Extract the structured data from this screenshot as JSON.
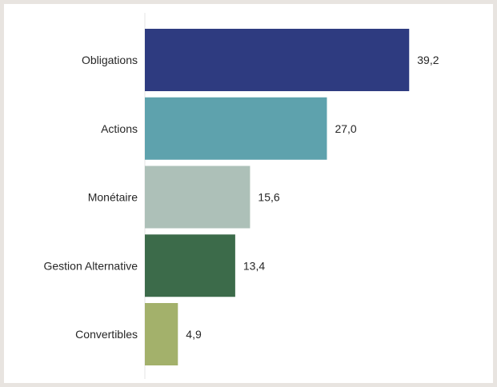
{
  "chart_data": {
    "type": "bar",
    "orientation": "horizontal",
    "categories": [
      "Obligations",
      "Actions",
      "Monétaire",
      "Gestion Alternative",
      "Convertibles"
    ],
    "values": [
      39.2,
      27.0,
      15.6,
      13.4,
      4.9
    ],
    "value_labels": [
      "39,2",
      "27,0",
      "15,6",
      "13,4",
      "4,9"
    ],
    "colors": [
      "#2e3b80",
      "#5ea2ad",
      "#adc0b8",
      "#3c6b4a",
      "#a3b16b"
    ],
    "title": "",
    "xlabel": "",
    "ylabel": "",
    "xlim": [
      0,
      40
    ],
    "grid": false,
    "legend": "none"
  }
}
